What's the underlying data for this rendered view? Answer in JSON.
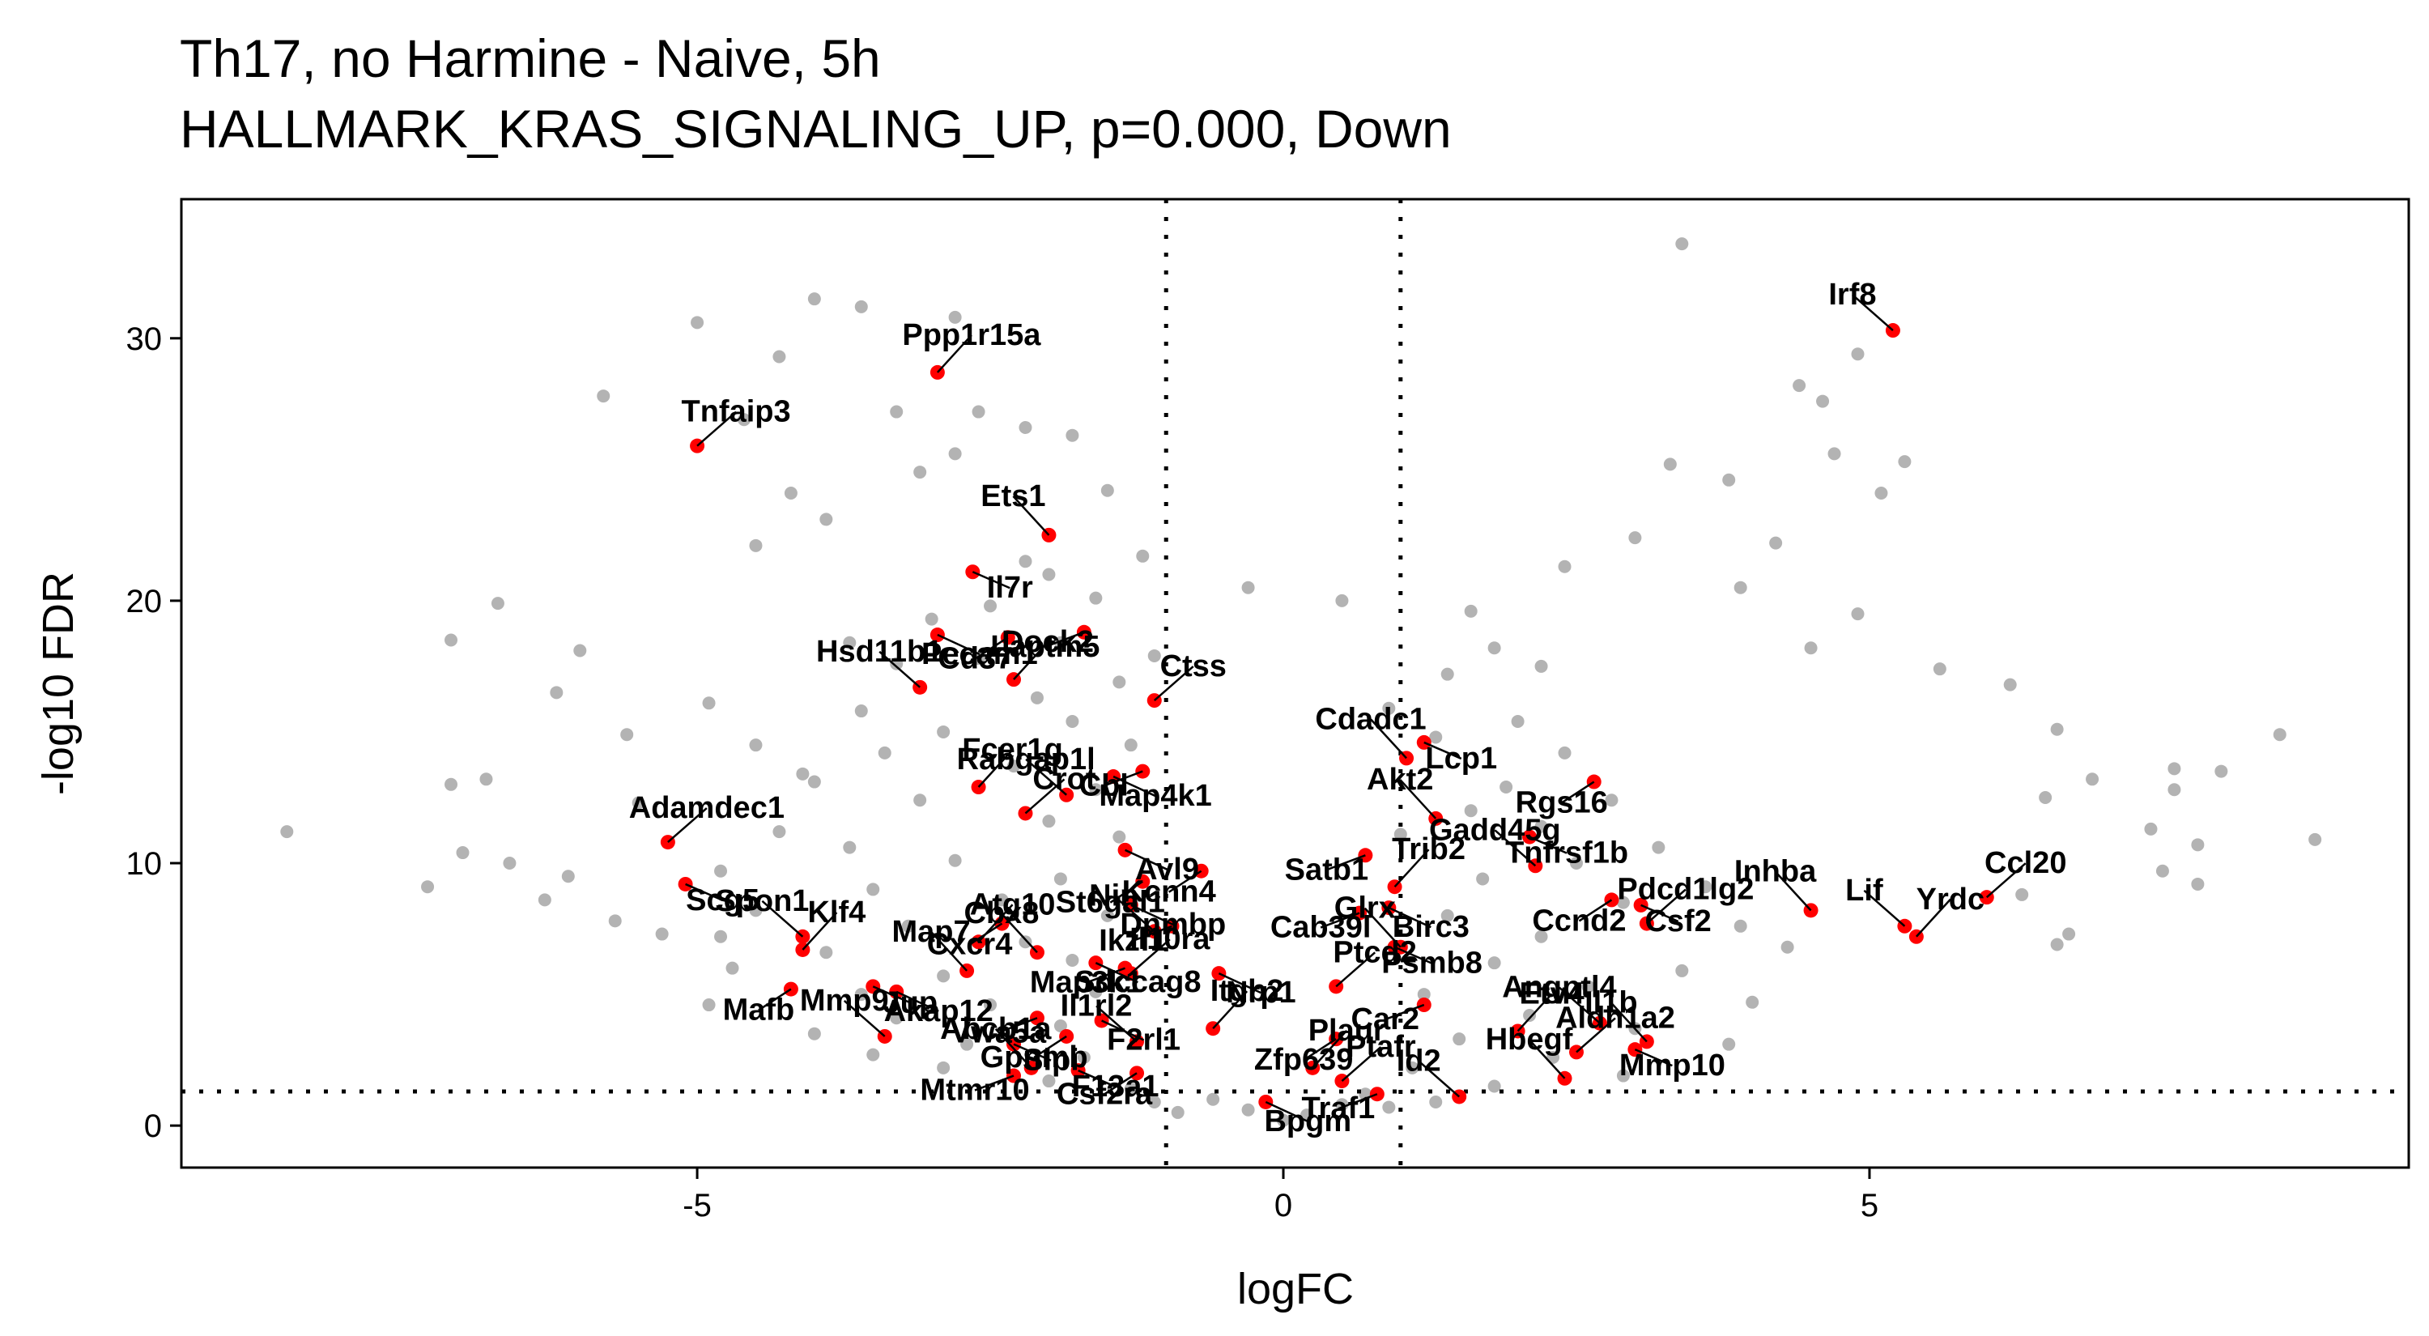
{
  "chart_data": {
    "type": "scatter",
    "title": "Th17, no Harmine - Naive, 5h",
    "subtitle": "HALLMARK_KRAS_SIGNALING_UP, p=0.000, Down",
    "xlabel": "logFC",
    "ylabel": "-log10 FDR",
    "xlim": [
      -9.4,
      9.6
    ],
    "ylim": [
      -1.6,
      35.3
    ],
    "xticks": [
      -5,
      0,
      5
    ],
    "yticks": [
      0,
      10,
      20,
      30
    ],
    "grid": false,
    "legend": "none",
    "thresholds": {
      "logFC": [
        -1,
        1
      ],
      "neg_log10_fdr": 1.3
    },
    "colors": {
      "background_genes": "#b3b3b3",
      "highlighted_genes": "#ff0000",
      "threshold_lines": "#000000"
    },
    "highlighted": [
      {
        "gene": "Irf8",
        "x": 5.2,
        "y": 30.3
      },
      {
        "gene": "Ppp1r15a",
        "x": -2.95,
        "y": 28.7
      },
      {
        "gene": "Tnfaip3",
        "x": -5.0,
        "y": 25.9
      },
      {
        "gene": "Ets1",
        "x": -2.0,
        "y": 22.5
      },
      {
        "gene": "Il7r",
        "x": -2.65,
        "y": 21.1
      },
      {
        "gene": "Cd37",
        "x": -2.35,
        "y": 18.6
      },
      {
        "gene": "Pecam1",
        "x": -2.95,
        "y": 18.7
      },
      {
        "gene": "Laptm5",
        "x": -1.7,
        "y": 18.8
      },
      {
        "gene": "Hsd11b1",
        "x": -3.1,
        "y": 16.7
      },
      {
        "gene": "Dock2",
        "x": -2.3,
        "y": 17.0
      },
      {
        "gene": "Ctss",
        "x": -1.1,
        "y": 16.2
      },
      {
        "gene": "Cdadc1",
        "x": 1.05,
        "y": 14.0
      },
      {
        "gene": "Lcp1",
        "x": 1.2,
        "y": 14.6
      },
      {
        "gene": "Rgs16",
        "x": 2.65,
        "y": 13.1
      },
      {
        "gene": "Map4k1",
        "x": -1.45,
        "y": 13.3
      },
      {
        "gene": "Cbl",
        "x": -1.2,
        "y": 13.5
      },
      {
        "gene": "Rabgap1l",
        "x": -1.85,
        "y": 12.6
      },
      {
        "gene": "Fcer1g",
        "x": -2.6,
        "y": 12.9
      },
      {
        "gene": "Crot",
        "x": -2.2,
        "y": 11.9
      },
      {
        "gene": "Akt2",
        "x": 1.3,
        "y": 11.7
      },
      {
        "gene": "Tnfrsf1b",
        "x": 2.1,
        "y": 11.0
      },
      {
        "gene": "Kcnn4",
        "x": -0.7,
        "y": 9.7
      },
      {
        "gene": "Avl9",
        "x": -1.35,
        "y": 10.5
      },
      {
        "gene": "Satb1",
        "x": 0.7,
        "y": 10.3
      },
      {
        "gene": "Gadd45g",
        "x": 2.15,
        "y": 9.9
      },
      {
        "gene": "Trib2",
        "x": 0.95,
        "y": 9.1
      },
      {
        "gene": "Ccl20",
        "x": 6.0,
        "y": 8.7
      },
      {
        "gene": "Inhba",
        "x": 4.5,
        "y": 8.2
      },
      {
        "gene": "Csf2",
        "x": 3.05,
        "y": 8.4
      },
      {
        "gene": "Ccnd2",
        "x": 2.8,
        "y": 8.6
      },
      {
        "gene": "Birc3",
        "x": 0.9,
        "y": 8.3
      },
      {
        "gene": "Cab39l",
        "x": 0.65,
        "y": 8.1
      },
      {
        "gene": "Lif",
        "x": 5.3,
        "y": 7.6
      },
      {
        "gene": "Yrdc",
        "x": 5.4,
        "y": 7.2
      },
      {
        "gene": "Pdcd1lg2",
        "x": 3.1,
        "y": 7.7
      },
      {
        "gene": "Glrx",
        "x": 1.0,
        "y": 6.8
      },
      {
        "gene": "Psmb8",
        "x": 0.95,
        "y": 6.8
      },
      {
        "gene": "St6gal1",
        "x": -1.2,
        "y": 9.3
      },
      {
        "gene": "Dnmbp",
        "x": -1.3,
        "y": 8.4
      },
      {
        "gene": "Ikzf1",
        "x": -0.95,
        "y": 7.6
      },
      {
        "gene": "Nin",
        "x": -1.1,
        "y": 7.4
      },
      {
        "gene": "Atg10",
        "x": -2.6,
        "y": 7.0
      },
      {
        "gene": "Adamdec1",
        "x": -5.25,
        "y": 10.8
      },
      {
        "gene": "Cbx8",
        "x": -2.1,
        "y": 6.6
      },
      {
        "gene": "Scg5",
        "x": -5.1,
        "y": 9.2
      },
      {
        "gene": "Cxcr4",
        "x": -2.4,
        "y": 7.7
      },
      {
        "gene": "Sdccag8",
        "x": -1.6,
        "y": 6.2
      },
      {
        "gene": "Map3k1",
        "x": -1.35,
        "y": 6.0
      },
      {
        "gene": "Spon1",
        "x": -4.1,
        "y": 7.2
      },
      {
        "gene": "Klf4",
        "x": -4.1,
        "y": 6.7
      },
      {
        "gene": "Il10ra",
        "x": -1.3,
        "y": 5.8
      },
      {
        "gene": "Map7",
        "x": -2.7,
        "y": 5.9
      },
      {
        "gene": "Jup",
        "x": -3.5,
        "y": 5.3
      },
      {
        "gene": "Mafb",
        "x": -4.2,
        "y": 5.2
      },
      {
        "gene": "Nrp1",
        "x": -0.55,
        "y": 5.8
      },
      {
        "gene": "Car2",
        "x": 1.2,
        "y": 4.6
      },
      {
        "gene": "Angptl4",
        "x": 2.7,
        "y": 3.9
      },
      {
        "gene": "Etv4",
        "x": 2.0,
        "y": 3.6
      },
      {
        "gene": "Ptcd2",
        "x": 0.45,
        "y": 5.3
      },
      {
        "gene": "Il1b",
        "x": 3.1,
        "y": 3.2
      },
      {
        "gene": "Mmp10",
        "x": 3.0,
        "y": 2.9
      },
      {
        "gene": "Zfp639",
        "x": 0.45,
        "y": 3.3
      },
      {
        "gene": "Akap12",
        "x": -3.3,
        "y": 5.1
      },
      {
        "gene": "Vwa5a",
        "x": -2.1,
        "y": 4.1
      },
      {
        "gene": "Mmp9",
        "x": -3.4,
        "y": 3.4
      },
      {
        "gene": "Itgb2",
        "x": -0.6,
        "y": 3.7
      },
      {
        "gene": "Aldh1a2",
        "x": 2.5,
        "y": 2.8
      },
      {
        "gene": "Hbegf",
        "x": 2.4,
        "y": 1.8
      },
      {
        "gene": "Slpi",
        "x": -2.3,
        "y": 3.1
      },
      {
        "gene": "Gpnmb",
        "x": -1.85,
        "y": 3.4
      },
      {
        "gene": "F2rl1",
        "x": -1.55,
        "y": 4.0
      },
      {
        "gene": "Mtmr10",
        "x": -2.3,
        "y": 1.9
      },
      {
        "gene": "Il1rl2",
        "x": -1.25,
        "y": 3.2
      },
      {
        "gene": "Plaur",
        "x": 0.25,
        "y": 2.2
      },
      {
        "gene": "Ptafr",
        "x": 0.5,
        "y": 1.7
      },
      {
        "gene": "Abcb1a",
        "x": -2.15,
        "y": 2.2
      },
      {
        "gene": "F13a1",
        "x": -1.75,
        "y": 2.1
      },
      {
        "gene": "Csf2ra",
        "x": -1.25,
        "y": 2.0
      },
      {
        "gene": "Bpgm",
        "x": -0.15,
        "y": 0.9
      },
      {
        "gene": "Traf1",
        "x": 0.8,
        "y": 1.2
      },
      {
        "gene": "Id2",
        "x": 1.5,
        "y": 1.1
      }
    ],
    "background_sample": [
      [
        3.4,
        33.6
      ],
      [
        -4.0,
        31.5
      ],
      [
        -3.6,
        31.2
      ],
      [
        -5.0,
        30.6
      ],
      [
        -2.8,
        30.8
      ],
      [
        -4.3,
        29.3
      ],
      [
        4.9,
        29.4
      ],
      [
        4.6,
        27.6
      ],
      [
        4.4,
        28.2
      ],
      [
        -5.8,
        27.8
      ],
      [
        -3.3,
        27.2
      ],
      [
        -2.6,
        27.2
      ],
      [
        -2.2,
        26.6
      ],
      [
        -4.6,
        26.9
      ],
      [
        -1.8,
        26.3
      ],
      [
        -2.8,
        25.6
      ],
      [
        5.3,
        25.3
      ],
      [
        4.7,
        25.6
      ],
      [
        3.3,
        25.2
      ],
      [
        3.8,
        24.6
      ],
      [
        -3.1,
        24.9
      ],
      [
        -1.5,
        24.2
      ],
      [
        -4.2,
        24.1
      ],
      [
        5.1,
        24.1
      ],
      [
        -3.9,
        23.1
      ],
      [
        3.0,
        22.4
      ],
      [
        -4.5,
        22.1
      ],
      [
        4.2,
        22.2
      ],
      [
        -2.2,
        21.5
      ],
      [
        3.9,
        20.5
      ],
      [
        2.4,
        21.3
      ],
      [
        -6.7,
        19.9
      ],
      [
        -7.1,
        18.5
      ],
      [
        -6.0,
        18.1
      ],
      [
        -3.7,
        18.4
      ],
      [
        4.9,
        19.5
      ],
      [
        4.5,
        18.2
      ],
      [
        5.6,
        17.4
      ],
      [
        -6.2,
        16.5
      ],
      [
        -4.9,
        16.1
      ],
      [
        6.2,
        16.8
      ],
      [
        6.6,
        15.1
      ],
      [
        -5.6,
        14.9
      ],
      [
        -4.5,
        14.5
      ],
      [
        8.5,
        14.9
      ],
      [
        8.0,
        13.5
      ],
      [
        7.6,
        13.6
      ],
      [
        6.9,
        13.2
      ],
      [
        -6.8,
        13.2
      ],
      [
        -7.1,
        13.0
      ],
      [
        7.6,
        12.8
      ],
      [
        -4.1,
        13.4
      ],
      [
        6.5,
        12.5
      ],
      [
        7.4,
        11.3
      ],
      [
        -5.5,
        12.3
      ],
      [
        -8.5,
        11.2
      ],
      [
        8.8,
        10.9
      ],
      [
        -7.0,
        10.4
      ],
      [
        -6.6,
        10.0
      ],
      [
        7.8,
        10.7
      ],
      [
        -6.1,
        9.5
      ],
      [
        7.5,
        9.7
      ],
      [
        -7.3,
        9.1
      ],
      [
        -6.3,
        8.6
      ],
      [
        6.3,
        8.8
      ],
      [
        7.8,
        9.2
      ],
      [
        6.7,
        7.3
      ],
      [
        6.6,
        6.9
      ],
      [
        -5.7,
        7.8
      ],
      [
        -4.8,
        7.2
      ],
      [
        -0.3,
        20.5
      ],
      [
        0.5,
        20.0
      ],
      [
        1.6,
        19.6
      ],
      [
        1.8,
        18.2
      ],
      [
        2.2,
        17.5
      ],
      [
        1.4,
        17.2
      ],
      [
        0.9,
        15.9
      ],
      [
        2.0,
        15.4
      ],
      [
        1.3,
        14.8
      ],
      [
        2.4,
        14.2
      ],
      [
        1.9,
        12.9
      ],
      [
        2.8,
        12.4
      ],
      [
        1.6,
        12.0
      ],
      [
        2.2,
        11.4
      ],
      [
        1.0,
        11.1
      ],
      [
        3.2,
        10.6
      ],
      [
        2.5,
        10.0
      ],
      [
        1.7,
        9.4
      ],
      [
        3.6,
        9.1
      ],
      [
        2.9,
        8.5
      ],
      [
        1.4,
        8.0
      ],
      [
        3.9,
        7.6
      ],
      [
        2.2,
        7.2
      ],
      [
        4.3,
        6.8
      ],
      [
        1.8,
        6.2
      ],
      [
        3.4,
        5.9
      ],
      [
        2.6,
        5.3
      ],
      [
        1.2,
        5.0
      ],
      [
        4.0,
        4.7
      ],
      [
        2.1,
        4.2
      ],
      [
        3.0,
        3.7
      ],
      [
        1.5,
        3.3
      ],
      [
        3.8,
        3.1
      ],
      [
        2.3,
        2.6
      ],
      [
        1.1,
        2.2
      ],
      [
        2.9,
        1.9
      ],
      [
        1.8,
        1.5
      ],
      [
        0.7,
        1.2
      ],
      [
        -1.2,
        21.7
      ],
      [
        -2.0,
        21.0
      ],
      [
        -1.6,
        20.1
      ],
      [
        -2.5,
        19.8
      ],
      [
        -3.0,
        19.3
      ],
      [
        -1.9,
        18.4
      ],
      [
        -1.1,
        17.9
      ],
      [
        -3.3,
        17.6
      ],
      [
        -2.6,
        17.8
      ],
      [
        -1.4,
        16.9
      ],
      [
        -2.1,
        16.3
      ],
      [
        -3.6,
        15.8
      ],
      [
        -1.8,
        15.4
      ],
      [
        -2.9,
        15.0
      ],
      [
        -1.3,
        14.5
      ],
      [
        -3.4,
        14.2
      ],
      [
        -2.3,
        13.7
      ],
      [
        -4.0,
        13.1
      ],
      [
        -1.6,
        12.8
      ],
      [
        -3.1,
        12.4
      ],
      [
        -2.0,
        11.6
      ],
      [
        -4.3,
        11.2
      ],
      [
        -1.4,
        11.0
      ],
      [
        -3.7,
        10.6
      ],
      [
        -2.8,
        10.1
      ],
      [
        -4.8,
        9.7
      ],
      [
        -1.9,
        9.4
      ],
      [
        -3.5,
        9.0
      ],
      [
        -2.4,
        8.6
      ],
      [
        -4.5,
        8.2
      ],
      [
        -1.5,
        8.0
      ],
      [
        -3.2,
        7.6
      ],
      [
        -5.3,
        7.3
      ],
      [
        -2.2,
        7.0
      ],
      [
        -3.9,
        6.6
      ],
      [
        -1.8,
        6.3
      ],
      [
        -4.7,
        6.0
      ],
      [
        -2.9,
        5.7
      ],
      [
        -3.6,
        5.0
      ],
      [
        -1.6,
        5.1
      ],
      [
        -4.9,
        4.6
      ],
      [
        -2.5,
        4.6
      ],
      [
        -3.3,
        4.1
      ],
      [
        -1.9,
        3.8
      ],
      [
        -4.0,
        3.5
      ],
      [
        -2.7,
        3.1
      ],
      [
        -3.5,
        2.7
      ],
      [
        -1.7,
        2.6
      ],
      [
        -2.9,
        2.2
      ],
      [
        -2.0,
        1.7
      ],
      [
        -1.3,
        1.4
      ],
      [
        -0.6,
        1.0
      ],
      [
        -0.3,
        0.6
      ],
      [
        0.2,
        0.4
      ],
      [
        0.5,
        0.8
      ],
      [
        -0.9,
        0.5
      ],
      [
        0.9,
        0.7
      ],
      [
        -1.1,
        0.9
      ],
      [
        0.0,
        0.2
      ],
      [
        1.3,
        0.9
      ]
    ]
  }
}
